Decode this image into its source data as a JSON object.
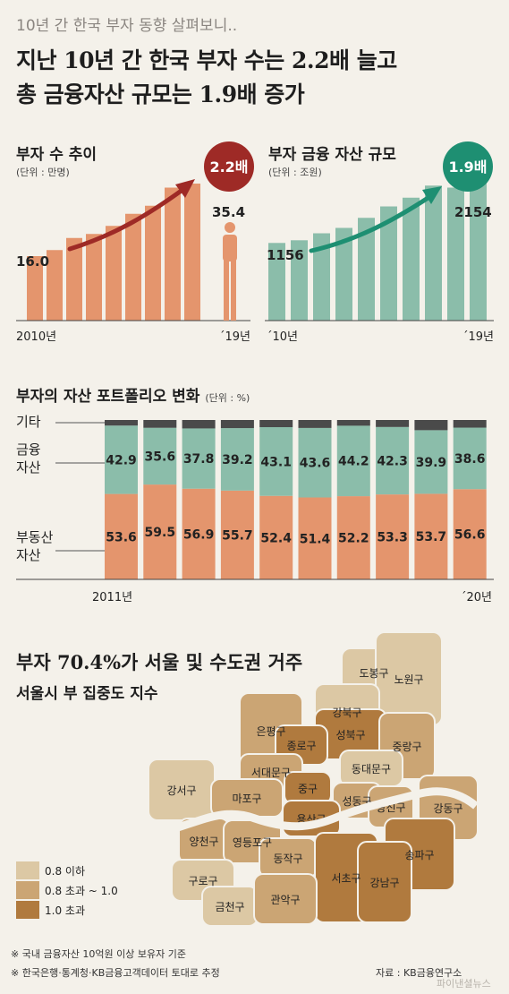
{
  "header": {
    "kicker": "10년 간 한국 부자 동향 살펴보니..",
    "headline_1": "지난 10년 간 한국 부자 수는 2.2배 늘고",
    "headline_2": "총 금융자산 규모는 1.9배 증가"
  },
  "colors": {
    "orange_bar": "#e4956d",
    "green_bar": "#8bbdaa",
    "red_arrow": "#9e2a26",
    "green_arrow": "#1e8f72",
    "other_bar": "#4a4a4a",
    "map_low": "#dcc8a4",
    "map_mid": "#cba574",
    "map_high": "#b07a3e"
  },
  "chart_data": [
    {
      "type": "bar",
      "title": "부자 수 추이",
      "unit": "(단위 : 만명)",
      "x_start_label": "2010년",
      "x_end_label": "´19년",
      "start_value_label": "16.0",
      "end_value_label": "35.4",
      "values": [
        16.0,
        17.5,
        20.5,
        21.5,
        23.5,
        26.5,
        28.5,
        33.0,
        34.0,
        35.4
      ],
      "badge": "2.2배",
      "ylim": [
        0,
        40
      ]
    },
    {
      "type": "bar",
      "title": "부자 금융 자산 규모",
      "unit": "(단위 : 조원)",
      "x_start_label": "´10년",
      "x_end_label": "´19년",
      "start_value_label": "1156",
      "end_value_label": "2154",
      "values": [
        1156,
        1196,
        1300,
        1380,
        1530,
        1700,
        1830,
        2010,
        1980,
        2154
      ],
      "badge": "1.9배",
      "ylim": [
        0,
        2400
      ]
    },
    {
      "type": "bar",
      "title": "부자의 자산 포트폴리오 변화",
      "unit": "(단위 : %)",
      "x_start_label": "2011년",
      "x_end_label": "´20년",
      "row_labels": [
        "기타",
        "금융\n자산",
        "부동산\n자산"
      ],
      "series": [
        {
          "name": "부동산 자산",
          "values": [
            53.6,
            59.5,
            56.9,
            55.7,
            52.4,
            51.4,
            52.2,
            53.3,
            53.7,
            56.6
          ]
        },
        {
          "name": "금융 자산",
          "values": [
            42.9,
            35.6,
            37.8,
            39.2,
            43.1,
            43.6,
            44.2,
            42.3,
            39.9,
            38.6
          ]
        },
        {
          "name": "기타",
          "values": [
            3.5,
            4.9,
            5.3,
            5.1,
            4.5,
            5.0,
            3.6,
            4.4,
            6.4,
            4.8
          ]
        }
      ]
    }
  ],
  "map": {
    "title": "부자 70.4%가 서울 및 수도권 거주",
    "subtitle": "서울시 부 집중도 지수",
    "legend": [
      "0.8 이하",
      "0.8 초과 ~ 1.0",
      "1.0 초과"
    ],
    "districts": [
      {
        "name": "도봉구",
        "level": "low"
      },
      {
        "name": "노원구",
        "level": "low"
      },
      {
        "name": "강북구",
        "level": "low"
      },
      {
        "name": "은평구",
        "level": "mid"
      },
      {
        "name": "성북구",
        "level": "high"
      },
      {
        "name": "종로구",
        "level": "high"
      },
      {
        "name": "중랑구",
        "level": "mid"
      },
      {
        "name": "서대문구",
        "level": "mid"
      },
      {
        "name": "동대문구",
        "level": "low"
      },
      {
        "name": "강서구",
        "level": "low"
      },
      {
        "name": "마포구",
        "level": "mid"
      },
      {
        "name": "중구",
        "level": "high"
      },
      {
        "name": "성동구",
        "level": "mid"
      },
      {
        "name": "광진구",
        "level": "mid"
      },
      {
        "name": "강동구",
        "level": "mid"
      },
      {
        "name": "용산구",
        "level": "high"
      },
      {
        "name": "양천구",
        "level": "mid"
      },
      {
        "name": "영등포구",
        "level": "mid"
      },
      {
        "name": "동작구",
        "level": "mid"
      },
      {
        "name": "송파구",
        "level": "high"
      },
      {
        "name": "구로구",
        "level": "low"
      },
      {
        "name": "서초구",
        "level": "high"
      },
      {
        "name": "강남구",
        "level": "high"
      },
      {
        "name": "금천구",
        "level": "low"
      },
      {
        "name": "관악구",
        "level": "mid"
      }
    ]
  },
  "footnotes": [
    "※ 국내 금융자산 10억원 이상 보유자 기준",
    "※ 한국은행·통계청·KB금융고객데이터 토대로 추정"
  ],
  "source": "자료 : KB금융연구소",
  "watermark": "파이낸셜뉴스"
}
